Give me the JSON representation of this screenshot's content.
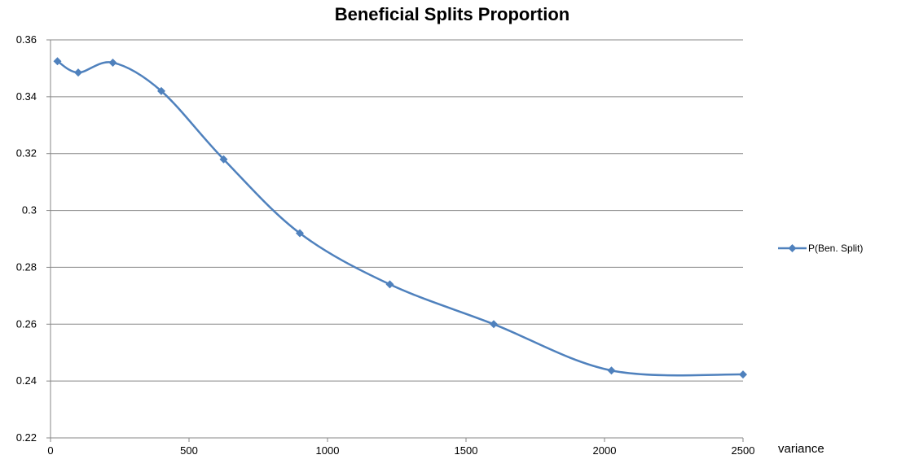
{
  "chart_data": {
    "type": "line",
    "title": "Beneficial Splits Proportion",
    "xlabel": "variance",
    "ylabel": "",
    "xlim": [
      0,
      2500
    ],
    "ylim": [
      0.22,
      0.36
    ],
    "x_ticks": [
      0,
      500,
      1000,
      1500,
      2000,
      2500
    ],
    "x_tick_labels": [
      "0",
      "500",
      "1000",
      "1500",
      "2000",
      "2500"
    ],
    "y_ticks": [
      0.22,
      0.24,
      0.26,
      0.28,
      0.3,
      0.32,
      0.34,
      0.36
    ],
    "y_tick_labels": [
      "0.22",
      "0.24",
      "0.26",
      "0.28",
      "0.3",
      "0.32",
      "0.34",
      "0.36"
    ],
    "grid": "horizontal",
    "legend_position": "right",
    "smooth": true,
    "series": [
      {
        "name": "P(Ben. Split)",
        "color": "#4f81bd",
        "marker": "diamond",
        "x": [
          25,
          100,
          225,
          400,
          625,
          900,
          1225,
          1600,
          2025,
          2500
        ],
        "y": [
          0.3525,
          0.3485,
          0.352,
          0.342,
          0.318,
          0.292,
          0.274,
          0.26,
          0.2437,
          0.2423
        ]
      }
    ]
  }
}
